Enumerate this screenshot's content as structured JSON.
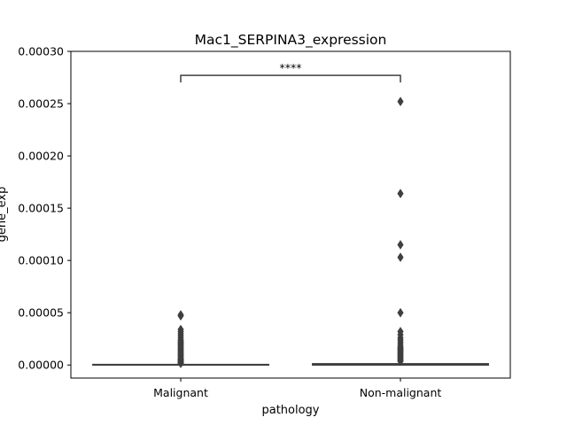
{
  "chart_data": {
    "type": "box",
    "title": "Mac1_SERPINA3_expression",
    "xlabel": "pathology",
    "ylabel": "gene_exp",
    "ylim": [
      -1.25e-05,
      0.0003
    ],
    "yticks": [
      "0.00000",
      "0.00005",
      "0.00010",
      "0.00015",
      "0.00020",
      "0.00025",
      "0.00030"
    ],
    "ytick_values": [
      0,
      5e-05,
      0.0001,
      0.00015,
      0.0002,
      0.00025,
      0.0003
    ],
    "categories": [
      "Malignant",
      "Non-malignant"
    ],
    "boxes": [
      {
        "category": "Malignant",
        "q1": 0,
        "median": 0,
        "q3": 5e-07,
        "whisker_low": 0,
        "whisker_high": 1.2e-06,
        "outliers": [
          1.5e-06,
          2e-06,
          2.5e-06,
          3e-06,
          3.5e-06,
          4e-06,
          4.5e-06,
          5e-06,
          5.5e-06,
          6e-06,
          7e-06,
          8e-06,
          9e-06,
          1e-05,
          1.1e-05,
          1.2e-05,
          1.3e-05,
          1.4e-05,
          1.5e-05,
          1.6e-05,
          1.7e-05,
          1.8e-05,
          1.9e-05,
          2e-05,
          2.1e-05,
          2.2e-05,
          2.3e-05,
          2.4e-05,
          2.6e-05,
          2.8e-05,
          3e-05,
          3.2e-05,
          3.4e-05,
          4.7e-05,
          4.8e-05
        ]
      },
      {
        "category": "Non-malignant",
        "q1": 0,
        "median": 0,
        "q3": 1.2e-06,
        "whisker_low": 0,
        "whisker_high": 3e-06,
        "outliers": [
          3.5e-06,
          4e-06,
          5e-06,
          6e-06,
          7e-06,
          8e-06,
          9e-06,
          1e-05,
          1.1e-05,
          1.2e-05,
          1.3e-05,
          1.4e-05,
          1.5e-05,
          1.6e-05,
          1.7e-05,
          1.8e-05,
          2e-05,
          2.2e-05,
          2.4e-05,
          2.6e-05,
          2.9e-05,
          3.2e-05,
          5e-05,
          0.000103,
          0.000115,
          0.000164,
          0.000252
        ]
      }
    ],
    "annotation": {
      "label": "****",
      "from": "Malignant",
      "to": "Non-malignant",
      "y": 0.000277
    },
    "colors": {
      "box_edge": "#3f3f3f",
      "outlier": "#3f3f3f",
      "axes": "#000000"
    },
    "grid": false,
    "legend": "none"
  }
}
